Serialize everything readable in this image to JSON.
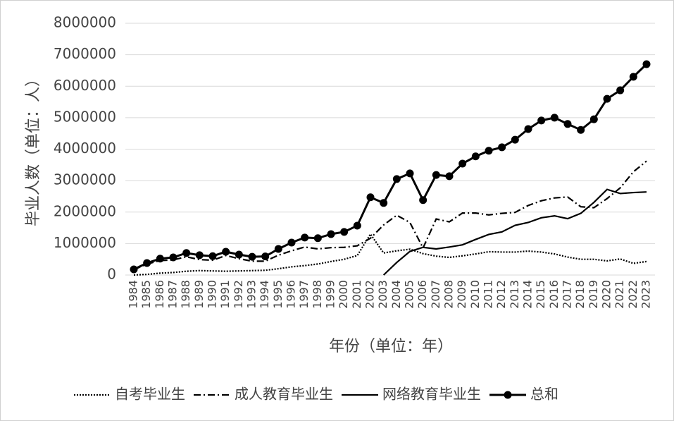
{
  "chart_data": {
    "type": "line",
    "y_label": "毕业人数（单位：人）",
    "x_label": "年份（单位：年）",
    "categories": [
      "1984",
      "1985",
      "1986",
      "1987",
      "1988",
      "1989",
      "1990",
      "1991",
      "1992",
      "1993",
      "1994",
      "1995",
      "1996",
      "1997",
      "1998",
      "1999",
      "2000",
      "2001",
      "2002",
      "2003",
      "2004",
      "2005",
      "2006",
      "2007",
      "2008",
      "2009",
      "2010",
      "2011",
      "2012",
      "2013",
      "2014",
      "2015",
      "2016",
      "2017",
      "2018",
      "2019",
      "2020",
      "2021",
      "2022",
      "2023"
    ],
    "ylim": [
      0,
      8000000
    ],
    "yticks": [
      0,
      1000000,
      2000000,
      3000000,
      4000000,
      5000000,
      6000000,
      7000000,
      8000000
    ],
    "grid": true,
    "legend": "bottom",
    "series": [
      {
        "name": "自考毕业生",
        "color": "#000000",
        "style": "dotted",
        "values": [
          0,
          20000,
          60000,
          80000,
          120000,
          140000,
          130000,
          120000,
          130000,
          140000,
          150000,
          200000,
          260000,
          300000,
          350000,
          430000,
          500000,
          620000,
          1300000,
          700000,
          770000,
          820000,
          680000,
          600000,
          560000,
          610000,
          670000,
          740000,
          730000,
          730000,
          760000,
          730000,
          670000,
          570000,
          500000,
          500000,
          450000,
          510000,
          370000,
          430000
        ]
      },
      {
        "name": "成人教育毕业生",
        "color": "#000000",
        "style": "dashdot",
        "values": [
          170000,
          350000,
          460000,
          480000,
          580000,
          490000,
          470000,
          620000,
          520000,
          440000,
          440000,
          630000,
          770000,
          890000,
          830000,
          870000,
          880000,
          930000,
          1170000,
          1590000,
          1900000,
          1670000,
          860000,
          1780000,
          1690000,
          1970000,
          1970000,
          1910000,
          1960000,
          1990000,
          2210000,
          2360000,
          2450000,
          2480000,
          2170000,
          2140000,
          2430000,
          2770000,
          3280000,
          3620000
        ]
      },
      {
        "name": "网络教育毕业生",
        "color": "#000000",
        "style": "solid",
        "values": [
          null,
          null,
          null,
          null,
          null,
          null,
          null,
          null,
          null,
          null,
          null,
          null,
          null,
          null,
          null,
          null,
          null,
          null,
          null,
          0,
          400000,
          750000,
          880000,
          830000,
          890000,
          960000,
          1130000,
          1290000,
          1370000,
          1580000,
          1670000,
          1820000,
          1880000,
          1790000,
          1960000,
          2310000,
          2720000,
          2590000,
          2620000,
          2640000
        ]
      },
      {
        "name": "总和",
        "color": "#000000",
        "style": "markers",
        "values": [
          180000,
          380000,
          520000,
          560000,
          700000,
          630000,
          600000,
          740000,
          650000,
          580000,
          590000,
          830000,
          1030000,
          1190000,
          1170000,
          1300000,
          1370000,
          1570000,
          2470000,
          2290000,
          3050000,
          3230000,
          2380000,
          3180000,
          3140000,
          3540000,
          3770000,
          3950000,
          4060000,
          4300000,
          4640000,
          4910000,
          5000000,
          4800000,
          4610000,
          4950000,
          5600000,
          5870000,
          6300000,
          6700000
        ]
      }
    ]
  }
}
